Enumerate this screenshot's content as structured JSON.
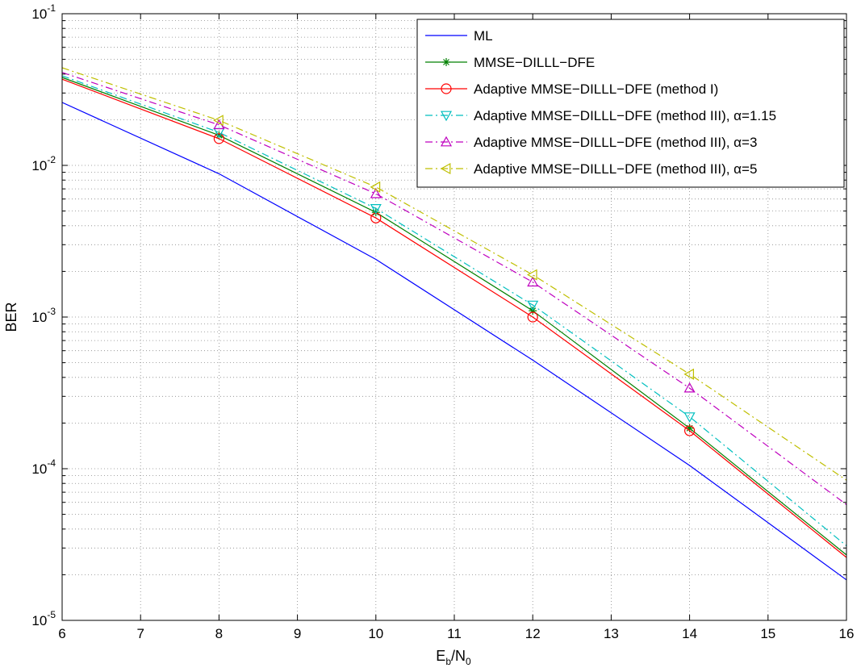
{
  "chart_data": {
    "type": "line",
    "xlabel": "E",
    "xlabel_sub": "b",
    "xlabel_mid": "/N",
    "xlabel_sub2": "0",
    "ylabel": "BER",
    "xlim": [
      6,
      16
    ],
    "ylim": [
      1e-05,
      0.1
    ],
    "yscale": "log",
    "grid": "dotted, major and minor",
    "legend_position": "top-right",
    "x_ticks": [
      6,
      7,
      8,
      9,
      10,
      11,
      12,
      13,
      14,
      15,
      16
    ],
    "x_tick_labels": [
      "6",
      "7",
      "8",
      "9",
      "10",
      "11",
      "12",
      "13",
      "14",
      "15",
      "16"
    ],
    "y_ticks": [
      {
        "value": 0.1,
        "base": "10",
        "exp": "-1"
      },
      {
        "value": 0.01,
        "base": "10",
        "exp": "-2"
      },
      {
        "value": 0.001,
        "base": "10",
        "exp": "-3"
      },
      {
        "value": 0.0001,
        "base": "10",
        "exp": "-4"
      },
      {
        "value": 1e-05,
        "base": "10",
        "exp": "-5"
      }
    ],
    "series": [
      {
        "name": "ML",
        "color": "#0000ff",
        "dash": "solid",
        "marker": "none",
        "x": [
          6,
          8,
          10,
          12,
          14,
          16
        ],
        "y": [
          0.026,
          0.0088,
          0.0024,
          0.00052,
          0.000105,
          1.85e-05
        ]
      },
      {
        "name": "MMSE−DILLL−DFE",
        "color": "#008000",
        "dash": "solid",
        "marker": "star",
        "x": [
          6,
          8,
          10,
          12,
          14,
          16
        ],
        "y": [
          0.038,
          0.0158,
          0.0049,
          0.0011,
          0.000185,
          2.7e-05
        ]
      },
      {
        "name": "Adaptive MMSE−DILLL−DFE (method I)",
        "color": "#ff0000",
        "dash": "solid",
        "marker": "circle",
        "x": [
          6,
          8,
          10,
          12,
          14,
          16
        ],
        "y": [
          0.037,
          0.015,
          0.0045,
          0.001,
          0.000178,
          2.6e-05
        ]
      },
      {
        "name": "Adaptive MMSE−DILLL−DFE (method III), α=1.15",
        "color": "#00bfbf",
        "dash": "dashdot",
        "marker": "triangle-down",
        "x": [
          6,
          8,
          10,
          12,
          14,
          16
        ],
        "y": [
          0.039,
          0.0165,
          0.0052,
          0.0012,
          0.00022,
          3.1e-05
        ]
      },
      {
        "name": "Adaptive MMSE−DILLL−DFE (method III), α=3",
        "color": "#bf00bf",
        "dash": "dashdot",
        "marker": "triangle-up",
        "x": [
          6,
          8,
          10,
          12,
          14,
          16
        ],
        "y": [
          0.041,
          0.0185,
          0.0065,
          0.0017,
          0.00034,
          5.8e-05
        ]
      },
      {
        "name": "Adaptive MMSE−DILLL−DFE (method III), α=5",
        "color": "#bfbf00",
        "dash": "dashdot",
        "marker": "triangle-left",
        "x": [
          6,
          8,
          10,
          12,
          14,
          16
        ],
        "y": [
          0.044,
          0.0198,
          0.0072,
          0.0019,
          0.00042,
          8.4e-05
        ]
      }
    ]
  }
}
